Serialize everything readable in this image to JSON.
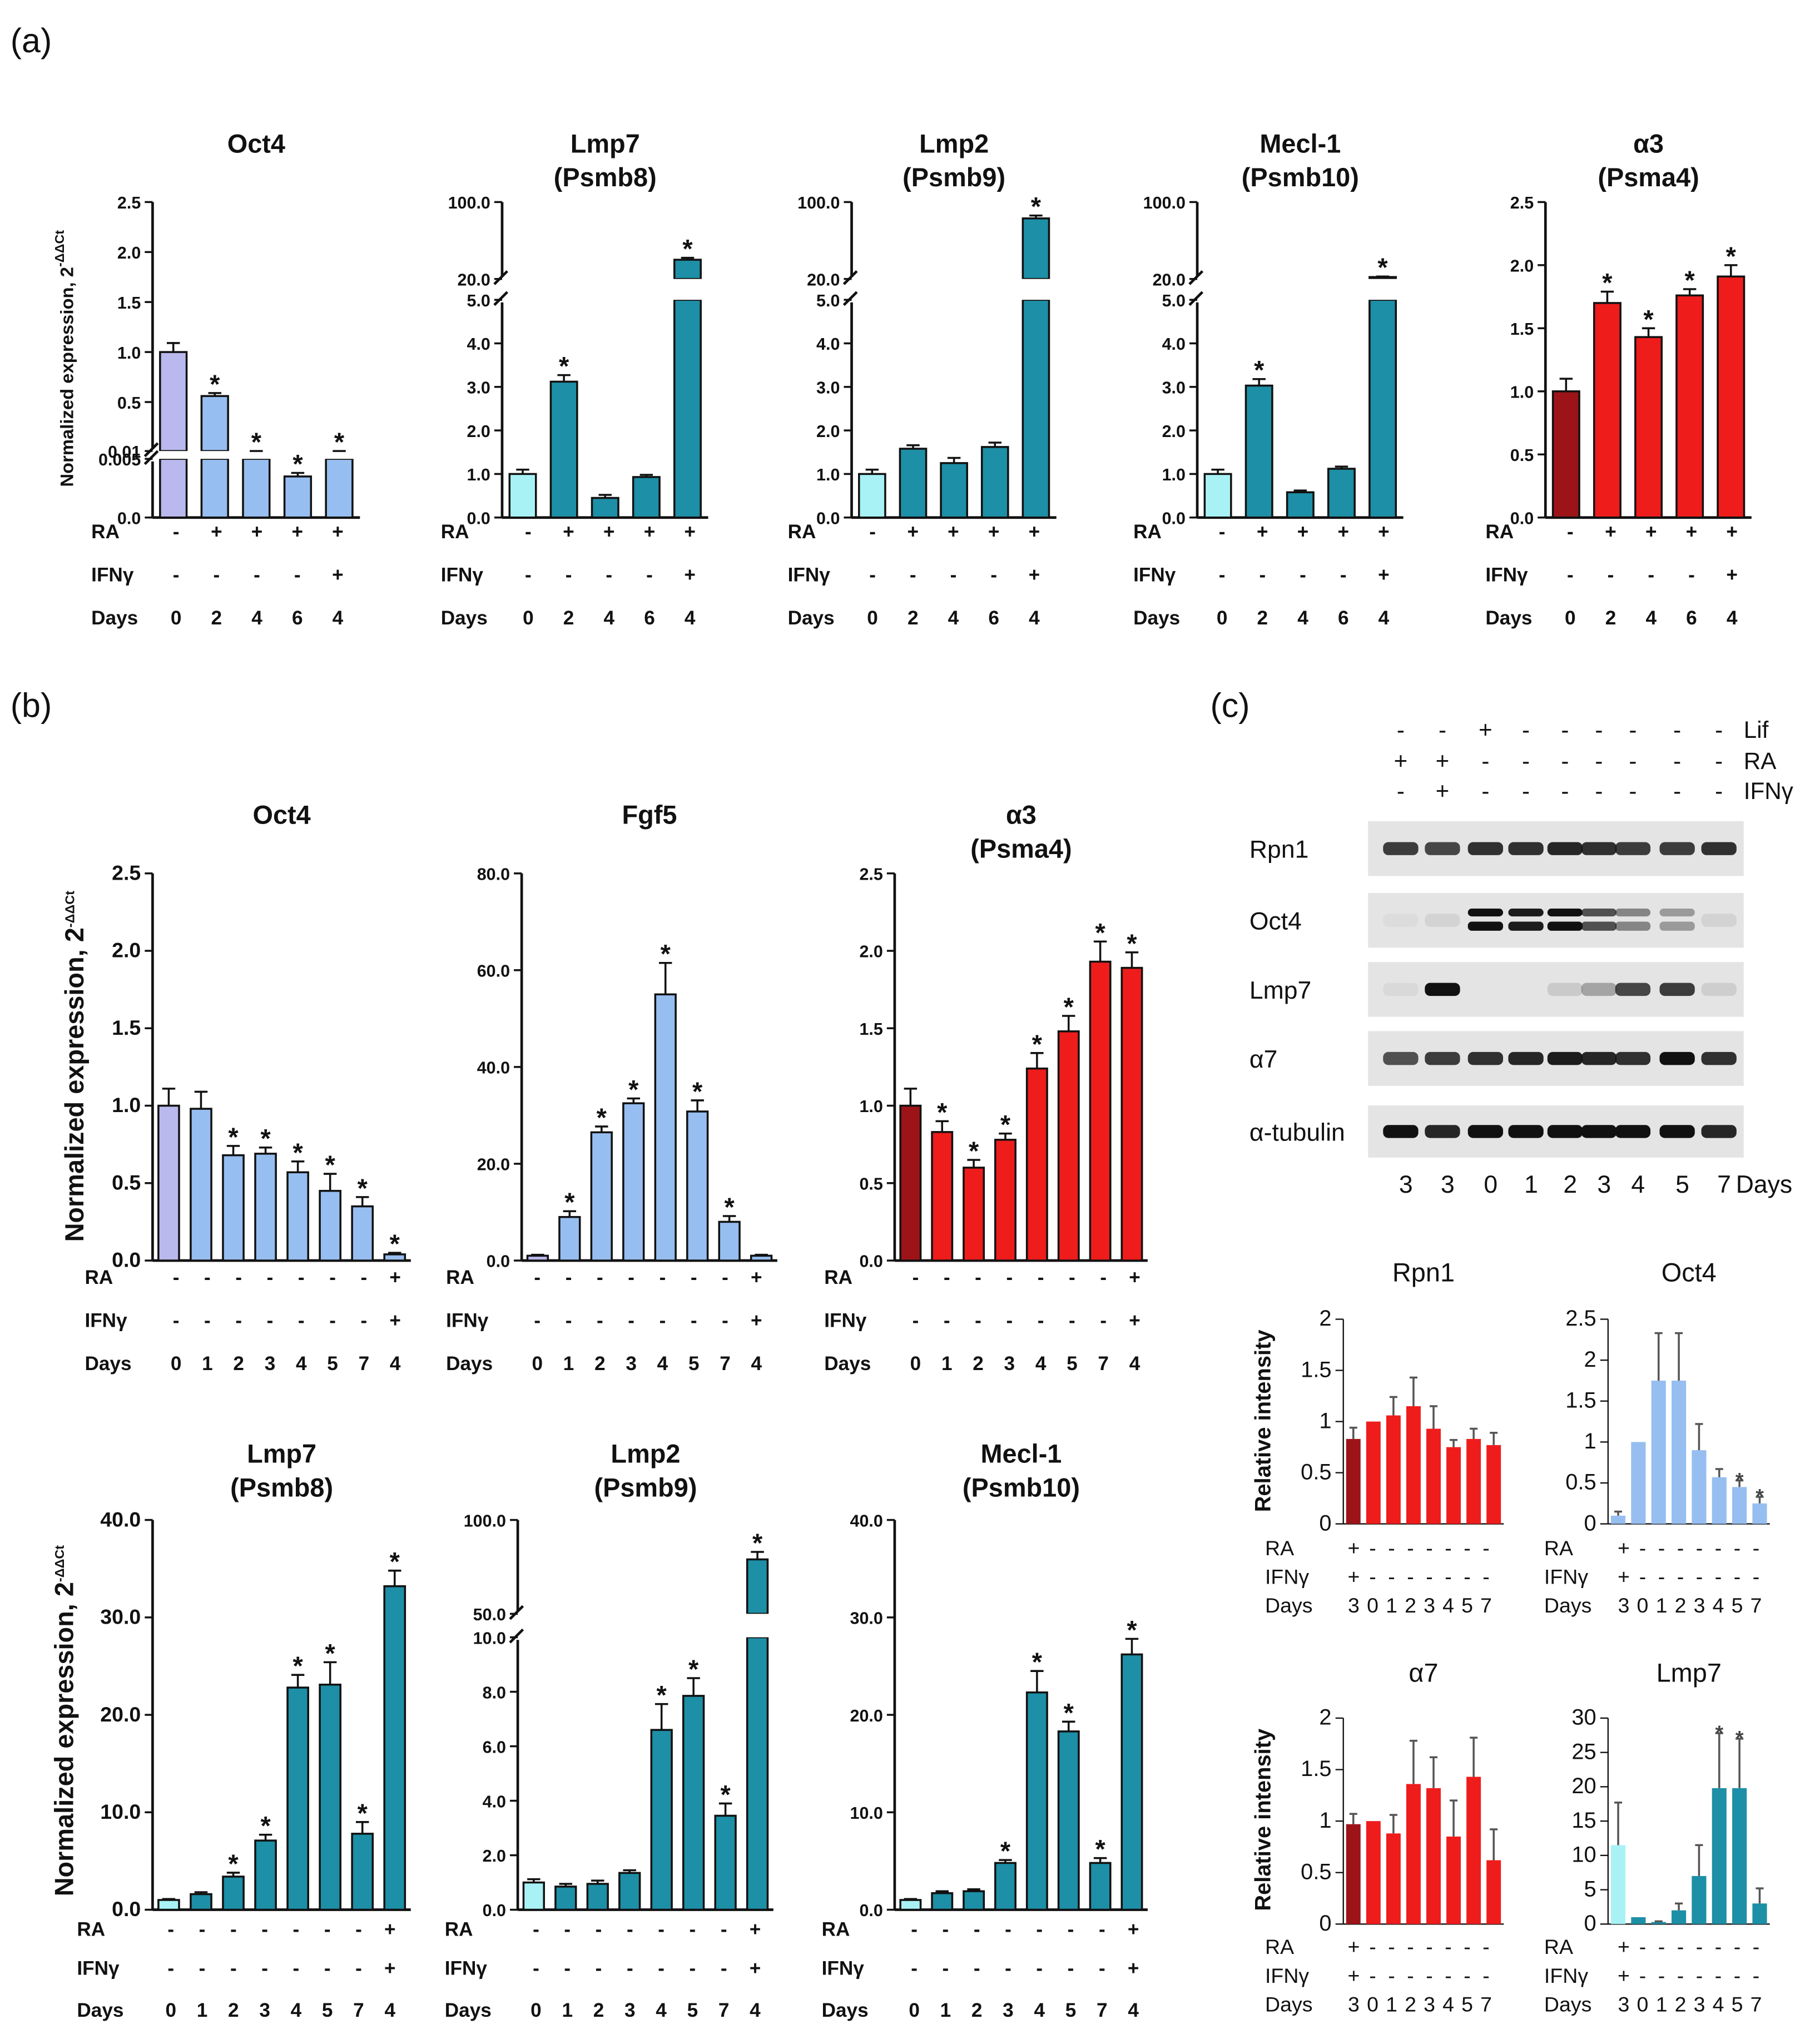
{
  "colors": {
    "lavender": "#b9b9ee",
    "lightblue": "#97bef0",
    "cyan_light": "#a8f2f6",
    "teal": "#1d8fa6",
    "darkred": "#9d1418",
    "red": "#ef1c1c"
  },
  "labels": {
    "panel_a": "(a)",
    "panel_b": "(b)",
    "panel_c": "(c)",
    "row_ra": "RA",
    "row_ifn": "IFNγ",
    "row_days": "Days",
    "ylabel_norm": "Normalized expression, 2",
    "ylabel_sup": "-ΔΔCt",
    "ylabel_rel": "Relative intensity",
    "star": "*"
  },
  "western": {
    "treat_labels": [
      "Lif",
      "RA",
      "IFNγ"
    ],
    "lif": [
      "-",
      "-",
      "+",
      "-",
      "-",
      "-",
      "-",
      "-",
      "-"
    ],
    "ra": [
      "+",
      "+",
      "-",
      "-",
      "-",
      "-",
      "-",
      "-",
      "-"
    ],
    "ifn": [
      "-",
      "+",
      "-",
      "-",
      "-",
      "-",
      "-",
      "-",
      "-"
    ],
    "blots": [
      "Rpn1",
      "Oct4",
      "Lmp7",
      "α7",
      "α-tubulin"
    ],
    "days": [
      "3",
      "3",
      "0",
      "1",
      "2",
      "3",
      "4",
      "5",
      "7"
    ],
    "days_label": "Days"
  },
  "chart_data": [
    {
      "id": "a1",
      "type": "bar",
      "title": "Oct4",
      "ylabel": "Normalized expression, 2^-ΔΔCt",
      "y_break": {
        "lower": [
          0.0,
          0.005
        ],
        "upper": [
          0.01,
          2.5
        ]
      },
      "ticks": [
        "0.0",
        "0.005",
        "0.01",
        "0.5",
        "1.0",
        "1.5",
        "2.0",
        "2.5"
      ],
      "values": [
        1.0,
        0.56,
        0.01,
        0.0035,
        0.01
      ],
      "errors": [
        0.09,
        0.03,
        0.0003,
        0.0003,
        0.0004
      ],
      "colors": [
        "lavender",
        "lightblue",
        "lightblue",
        "lightblue",
        "lightblue"
      ],
      "significant": [
        false,
        true,
        true,
        true,
        true
      ],
      "ra": [
        "-",
        "+",
        "+",
        "+",
        "+"
      ],
      "ifn": [
        "-",
        "-",
        "-",
        "-",
        "+"
      ],
      "days": [
        "0",
        "2",
        "4",
        "6",
        "4"
      ]
    },
    {
      "id": "a2",
      "type": "bar",
      "title": "Lmp7\n(Psmb8)",
      "y_break": {
        "lower": [
          0.0,
          5.0
        ],
        "upper": [
          20.0,
          100.0
        ]
      },
      "ticks": [
        "0.0",
        "1.0",
        "2.0",
        "3.0",
        "4.0",
        "5.0",
        "20.0",
        "100.0"
      ],
      "values": [
        1.0,
        3.12,
        0.45,
        0.93,
        40.0
      ],
      "errors": [
        0.1,
        0.15,
        0.07,
        0.05,
        2.0
      ],
      "colors": [
        "cyan_light",
        "teal",
        "teal",
        "teal",
        "teal"
      ],
      "significant": [
        false,
        true,
        false,
        false,
        true
      ],
      "ra": [
        "-",
        "+",
        "+",
        "+",
        "+"
      ],
      "ifn": [
        "-",
        "-",
        "-",
        "-",
        "+"
      ],
      "days": [
        "0",
        "2",
        "4",
        "6",
        "4"
      ]
    },
    {
      "id": "a3",
      "type": "bar",
      "title": "Lmp2\n(Psmb9)",
      "y_break": {
        "lower": [
          0.0,
          5.0
        ],
        "upper": [
          20.0,
          100.0
        ]
      },
      "ticks": [
        "0.0",
        "1.0",
        "2.0",
        "3.0",
        "4.0",
        "5.0",
        "20.0",
        "100.0"
      ],
      "values": [
        1.0,
        1.58,
        1.25,
        1.62,
        83.0
      ],
      "errors": [
        0.1,
        0.08,
        0.12,
        0.1,
        3.0
      ],
      "colors": [
        "cyan_light",
        "teal",
        "teal",
        "teal",
        "teal"
      ],
      "significant": [
        false,
        false,
        false,
        false,
        true
      ],
      "ra": [
        "-",
        "+",
        "+",
        "+",
        "+"
      ],
      "ifn": [
        "-",
        "-",
        "-",
        "-",
        "+"
      ],
      "days": [
        "0",
        "2",
        "4",
        "6",
        "4"
      ]
    },
    {
      "id": "a4",
      "type": "bar",
      "title": "Mecl-1\n(Psmb10)",
      "y_break": {
        "lower": [
          0.0,
          5.0
        ],
        "upper": [
          20.0,
          100.0
        ]
      },
      "ticks": [
        "0.0",
        "1.0",
        "2.0",
        "3.0",
        "4.0",
        "5.0",
        "20.0",
        "100.0"
      ],
      "values": [
        1.0,
        3.03,
        0.58,
        1.12,
        22.0
      ],
      "errors": [
        0.1,
        0.15,
        0.04,
        0.05,
        0.6
      ],
      "colors": [
        "cyan_light",
        "teal",
        "teal",
        "teal",
        "teal"
      ],
      "significant": [
        false,
        true,
        false,
        false,
        true
      ],
      "ra": [
        "-",
        "+",
        "+",
        "+",
        "+"
      ],
      "ifn": [
        "-",
        "-",
        "-",
        "-",
        "+"
      ],
      "days": [
        "0",
        "2",
        "4",
        "6",
        "4"
      ]
    },
    {
      "id": "a5",
      "type": "bar",
      "title": "α3\n(Psma4)",
      "ylim": [
        0,
        2.5
      ],
      "ticks": [
        "0.0",
        "0.5",
        "1.0",
        "1.5",
        "2.0",
        "2.5"
      ],
      "values": [
        1.0,
        1.7,
        1.43,
        1.76,
        1.91
      ],
      "errors": [
        0.1,
        0.09,
        0.07,
        0.05,
        0.09
      ],
      "colors": [
        "darkred",
        "red",
        "red",
        "red",
        "red"
      ],
      "significant": [
        false,
        true,
        true,
        true,
        true
      ],
      "ra": [
        "-",
        "+",
        "+",
        "+",
        "+"
      ],
      "ifn": [
        "-",
        "-",
        "-",
        "-",
        "+"
      ],
      "days": [
        "0",
        "2",
        "4",
        "6",
        "4"
      ]
    },
    {
      "id": "b1",
      "type": "bar",
      "title": "Oct4",
      "ylabel": "Normalized expression, 2^-ΔΔCt",
      "ylim": [
        0,
        2.5
      ],
      "ticks": [
        "0.0",
        "0.5",
        "1.0",
        "1.5",
        "2.0",
        "2.5"
      ],
      "values": [
        1.0,
        0.98,
        0.68,
        0.69,
        0.57,
        0.45,
        0.35,
        0.04
      ],
      "errors": [
        0.11,
        0.11,
        0.06,
        0.04,
        0.07,
        0.11,
        0.06,
        0.01
      ],
      "colors": [
        "lavender",
        "lightblue",
        "lightblue",
        "lightblue",
        "lightblue",
        "lightblue",
        "lightblue",
        "lightblue"
      ],
      "significant": [
        false,
        false,
        true,
        true,
        true,
        true,
        true,
        true
      ],
      "ra": [
        "-",
        "-",
        "-",
        "-",
        "-",
        "-",
        "-",
        "+"
      ],
      "ifn": [
        "-",
        "-",
        "-",
        "-",
        "-",
        "-",
        "-",
        "+"
      ],
      "days": [
        "0",
        "1",
        "2",
        "3",
        "4",
        "5",
        "7",
        "4"
      ]
    },
    {
      "id": "b2",
      "type": "bar",
      "title": "Fgf5",
      "ylim": [
        0,
        80
      ],
      "ticks": [
        "0.0",
        "20.0",
        "40.0",
        "60.0",
        "80.0"
      ],
      "values": [
        1.0,
        9.0,
        26.5,
        32.5,
        55.0,
        30.8,
        8.0,
        1.0
      ],
      "errors": [
        0.2,
        1.2,
        1.2,
        1.0,
        6.5,
        2.3,
        1.2,
        0.2
      ],
      "colors": [
        "lavender",
        "lightblue",
        "lightblue",
        "lightblue",
        "lightblue",
        "lightblue",
        "lightblue",
        "lightblue"
      ],
      "significant": [
        false,
        true,
        true,
        true,
        true,
        true,
        true,
        false
      ],
      "ra": [
        "-",
        "-",
        "-",
        "-",
        "-",
        "-",
        "-",
        "+"
      ],
      "ifn": [
        "-",
        "-",
        "-",
        "-",
        "-",
        "-",
        "-",
        "+"
      ],
      "days": [
        "0",
        "1",
        "2",
        "3",
        "4",
        "5",
        "7",
        "4"
      ]
    },
    {
      "id": "b3",
      "type": "bar",
      "title": "α3\n(Psma4)",
      "ylim": [
        0,
        2.5
      ],
      "ticks": [
        "0.0",
        "0.5",
        "1.0",
        "1.5",
        "2.0",
        "2.5"
      ],
      "values": [
        1.0,
        0.83,
        0.6,
        0.78,
        1.24,
        1.48,
        1.93,
        1.89
      ],
      "errors": [
        0.11,
        0.07,
        0.05,
        0.04,
        0.1,
        0.1,
        0.13,
        0.1
      ],
      "colors": [
        "darkred",
        "red",
        "red",
        "red",
        "red",
        "red",
        "red",
        "red"
      ],
      "significant": [
        false,
        true,
        true,
        true,
        true,
        true,
        true,
        true
      ],
      "ra": [
        "-",
        "-",
        "-",
        "-",
        "-",
        "-",
        "-",
        "+"
      ],
      "ifn": [
        "-",
        "-",
        "-",
        "-",
        "-",
        "-",
        "-",
        "+"
      ],
      "days": [
        "0",
        "1",
        "2",
        "3",
        "4",
        "5",
        "7",
        "4"
      ]
    },
    {
      "id": "b4",
      "type": "bar",
      "title": "Lmp7\n(Psmb8)",
      "ylabel": "Normalized expression, 2^-ΔΔCt",
      "ylim": [
        0,
        40
      ],
      "ticks": [
        "0.0",
        "10.0",
        "20.0",
        "30.0",
        "40.0"
      ],
      "values": [
        1.0,
        1.6,
        3.4,
        7.1,
        22.8,
        23.1,
        7.8,
        33.2
      ],
      "errors": [
        0.1,
        0.2,
        0.4,
        0.6,
        1.3,
        2.3,
        1.2,
        1.6
      ],
      "colors": [
        "cyan_light",
        "teal",
        "teal",
        "teal",
        "teal",
        "teal",
        "teal",
        "teal"
      ],
      "significant": [
        false,
        false,
        true,
        true,
        true,
        true,
        true,
        true
      ],
      "ra": [
        "-",
        "-",
        "-",
        "-",
        "-",
        "-",
        "-",
        "+"
      ],
      "ifn": [
        "-",
        "-",
        "-",
        "-",
        "-",
        "-",
        "-",
        "+"
      ],
      "days": [
        "0",
        "1",
        "2",
        "3",
        "4",
        "5",
        "7",
        "4"
      ]
    },
    {
      "id": "b5",
      "type": "bar",
      "title": "Lmp2\n(Psmb9)",
      "y_break": {
        "lower": [
          0.0,
          10.0
        ],
        "upper": [
          50.0,
          100.0
        ]
      },
      "ticks": [
        "0.0",
        "2.0",
        "4.0",
        "6.0",
        "8.0",
        "10.0",
        "50.0",
        "100.0"
      ],
      "values": [
        1.0,
        0.85,
        0.95,
        1.35,
        6.6,
        7.85,
        3.45,
        79.0
      ],
      "errors": [
        0.12,
        0.1,
        0.12,
        0.1,
        0.95,
        0.65,
        0.45,
        4.0
      ],
      "colors": [
        "cyan_light",
        "teal",
        "teal",
        "teal",
        "teal",
        "teal",
        "teal",
        "teal"
      ],
      "significant": [
        false,
        false,
        false,
        false,
        true,
        true,
        true,
        true
      ],
      "ra": [
        "-",
        "-",
        "-",
        "-",
        "-",
        "-",
        "-",
        "+"
      ],
      "ifn": [
        "-",
        "-",
        "-",
        "-",
        "-",
        "-",
        "-",
        "+"
      ],
      "days": [
        "0",
        "1",
        "2",
        "3",
        "4",
        "5",
        "7",
        "4"
      ]
    },
    {
      "id": "b6",
      "type": "bar",
      "title": "Mecl-1\n(Psmb10)",
      "ylim": [
        0,
        40
      ],
      "ticks": [
        "0.0",
        "10.0",
        "20.0",
        "30.0",
        "40.0"
      ],
      "values": [
        1.0,
        1.7,
        1.9,
        4.8,
        22.3,
        18.3,
        4.8,
        26.2
      ],
      "errors": [
        0.1,
        0.2,
        0.2,
        0.3,
        2.2,
        1.0,
        0.5,
        1.6
      ],
      "colors": [
        "cyan_light",
        "teal",
        "teal",
        "teal",
        "teal",
        "teal",
        "teal",
        "teal"
      ],
      "significant": [
        false,
        false,
        false,
        true,
        true,
        true,
        true,
        true
      ],
      "ra": [
        "-",
        "-",
        "-",
        "-",
        "-",
        "-",
        "-",
        "+"
      ],
      "ifn": [
        "-",
        "-",
        "-",
        "-",
        "-",
        "-",
        "-",
        "+"
      ],
      "days": [
        "0",
        "1",
        "2",
        "3",
        "4",
        "5",
        "7",
        "4"
      ]
    },
    {
      "id": "c1",
      "type": "bar",
      "title": "Rpn1",
      "ylabel": "Relative intensity",
      "ylim": [
        0,
        2
      ],
      "ticks": [
        "0",
        "0.5",
        "1",
        "1.5",
        "2"
      ],
      "values": [
        0.83,
        1.0,
        1.06,
        1.15,
        0.93,
        0.75,
        0.83,
        0.77
      ],
      "errors": [
        0.11,
        0.0,
        0.18,
        0.28,
        0.22,
        0.07,
        0.1,
        0.12
      ],
      "colors": [
        "darkred",
        "red",
        "red",
        "red",
        "red",
        "red",
        "red",
        "red"
      ],
      "significant": [
        false,
        false,
        false,
        false,
        false,
        false,
        false,
        false
      ],
      "ra": [
        "+",
        "-",
        "-",
        "-",
        "-",
        "-",
        "-",
        "-"
      ],
      "ifn": [
        "+",
        "-",
        "-",
        "-",
        "-",
        "-",
        "-",
        "-"
      ],
      "days": [
        "3",
        "0",
        "1",
        "2",
        "3",
        "4",
        "5",
        "7"
      ]
    },
    {
      "id": "c2",
      "type": "bar",
      "title": "Oct4",
      "ylim": [
        0,
        2.5
      ],
      "ticks": [
        "0",
        "0.5",
        "1",
        "1.5",
        "2",
        "2.5"
      ],
      "values": [
        0.1,
        1.0,
        1.75,
        1.75,
        0.9,
        0.57,
        0.45,
        0.25
      ],
      "errors": [
        0.05,
        0.0,
        0.58,
        0.58,
        0.32,
        0.1,
        0.08,
        0.08
      ],
      "colors": [
        "lightblue",
        "lightblue",
        "lightblue",
        "lightblue",
        "lightblue",
        "lightblue",
        "lightblue",
        "lightblue"
      ],
      "significant": [
        false,
        false,
        false,
        false,
        false,
        false,
        true,
        true
      ],
      "ra": [
        "+",
        "-",
        "-",
        "-",
        "-",
        "-",
        "-",
        "-"
      ],
      "ifn": [
        "+",
        "-",
        "-",
        "-",
        "-",
        "-",
        "-",
        "-"
      ],
      "days": [
        "3",
        "0",
        "1",
        "2",
        "3",
        "4",
        "5",
        "7"
      ]
    },
    {
      "id": "c3",
      "type": "bar",
      "title": "α7",
      "ylabel": "Relative intensity",
      "ylim": [
        0,
        2
      ],
      "ticks": [
        "0",
        "0.5",
        "1",
        "1.5",
        "2"
      ],
      "values": [
        0.97,
        1.0,
        0.88,
        1.36,
        1.32,
        0.85,
        1.43,
        0.62
      ],
      "errors": [
        0.1,
        0.0,
        0.18,
        0.42,
        0.3,
        0.35,
        0.38,
        0.3
      ],
      "colors": [
        "darkred",
        "red",
        "red",
        "red",
        "red",
        "red",
        "red",
        "red"
      ],
      "significant": [
        false,
        false,
        false,
        false,
        false,
        false,
        false,
        false
      ],
      "ra": [
        "+",
        "-",
        "-",
        "-",
        "-",
        "-",
        "-",
        "-"
      ],
      "ifn": [
        "+",
        "-",
        "-",
        "-",
        "-",
        "-",
        "-",
        "-"
      ],
      "days": [
        "3",
        "0",
        "1",
        "2",
        "3",
        "4",
        "5",
        "7"
      ]
    },
    {
      "id": "c4",
      "type": "bar",
      "title": "Lmp7",
      "ylim": [
        0,
        30
      ],
      "ticks": [
        "0",
        "5",
        "10",
        "15",
        "20",
        "25",
        "30"
      ],
      "values": [
        11.5,
        1.0,
        0.3,
        2.0,
        7.0,
        19.8,
        19.8,
        3.0
      ],
      "errors": [
        6.2,
        0.0,
        0.1,
        1.0,
        4.5,
        8.0,
        7.2,
        2.2
      ],
      "colors": [
        "cyan_light",
        "teal",
        "teal",
        "teal",
        "teal",
        "teal",
        "teal",
        "teal"
      ],
      "significant": [
        false,
        false,
        false,
        false,
        false,
        true,
        true,
        false
      ],
      "ra": [
        "+",
        "-",
        "-",
        "-",
        "-",
        "-",
        "-",
        "-"
      ],
      "ifn": [
        "+",
        "-",
        "-",
        "-",
        "-",
        "-",
        "-",
        "-"
      ],
      "days": [
        "3",
        "0",
        "1",
        "2",
        "3",
        "4",
        "5",
        "7"
      ]
    }
  ]
}
